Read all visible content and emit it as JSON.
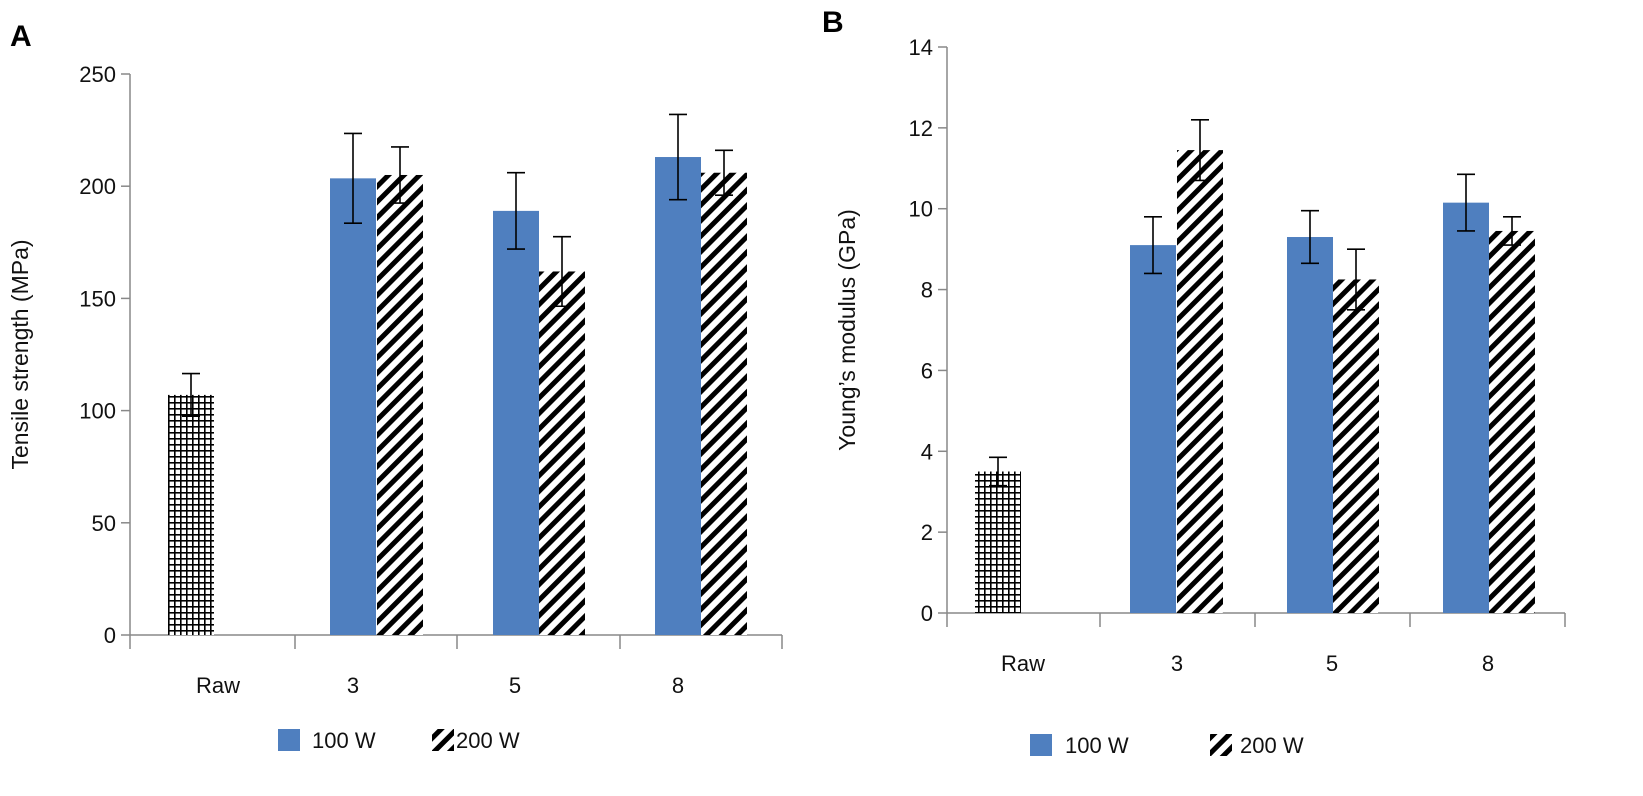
{
  "colors": {
    "series_100W": "#4f7fbf",
    "axis": "#888888",
    "hatch": "#000000"
  },
  "chart_data": [
    {
      "panel": "A",
      "type": "bar",
      "ylabel": "Tensile strength (MPa)",
      "xlabel": "",
      "ylim": [
        0,
        250
      ],
      "yticks": [
        "0",
        "50",
        "100",
        "150",
        "200",
        "250"
      ],
      "categories": [
        "Raw",
        "3",
        "5",
        "8"
      ],
      "legend": {
        "placement": "bottom",
        "entries": [
          "100 W",
          "200 W"
        ]
      },
      "grid": false,
      "series": [
        {
          "pattern": "grid",
          "values": [
            107,
            null,
            null,
            null
          ],
          "errors": [
            9.5,
            null,
            null,
            null
          ]
        },
        {
          "name": "100 W",
          "pattern": "solid",
          "values": [
            null,
            203.5,
            189,
            213
          ],
          "errors": [
            null,
            20,
            17,
            19
          ]
        },
        {
          "name": "200 W",
          "pattern": "diagonal",
          "values": [
            null,
            205,
            162,
            206
          ],
          "errors": [
            null,
            12.5,
            15.5,
            10
          ]
        }
      ]
    },
    {
      "panel": "B",
      "type": "bar",
      "ylabel": "Young’s modulus (GPa)",
      "xlabel": "",
      "ylim": [
        0,
        14
      ],
      "yticks": [
        "0",
        "2",
        "4",
        "6",
        "8",
        "10",
        "12",
        "14"
      ],
      "categories": [
        "Raw",
        "3",
        "5",
        "8"
      ],
      "legend": {
        "placement": "bottom",
        "entries": [
          "100 W",
          "200 W"
        ]
      },
      "grid": false,
      "series": [
        {
          "pattern": "grid",
          "values": [
            3.5,
            null,
            null,
            null
          ],
          "errors": [
            0.35,
            null,
            null,
            null
          ]
        },
        {
          "name": "100 W",
          "pattern": "solid",
          "values": [
            null,
            9.1,
            9.3,
            10.15
          ],
          "errors": [
            null,
            0.7,
            0.65,
            0.7
          ]
        },
        {
          "name": "200 W",
          "pattern": "diagonal",
          "values": [
            null,
            11.45,
            8.25,
            9.45
          ],
          "errors": [
            null,
            0.75,
            0.75,
            0.35
          ]
        }
      ]
    }
  ]
}
